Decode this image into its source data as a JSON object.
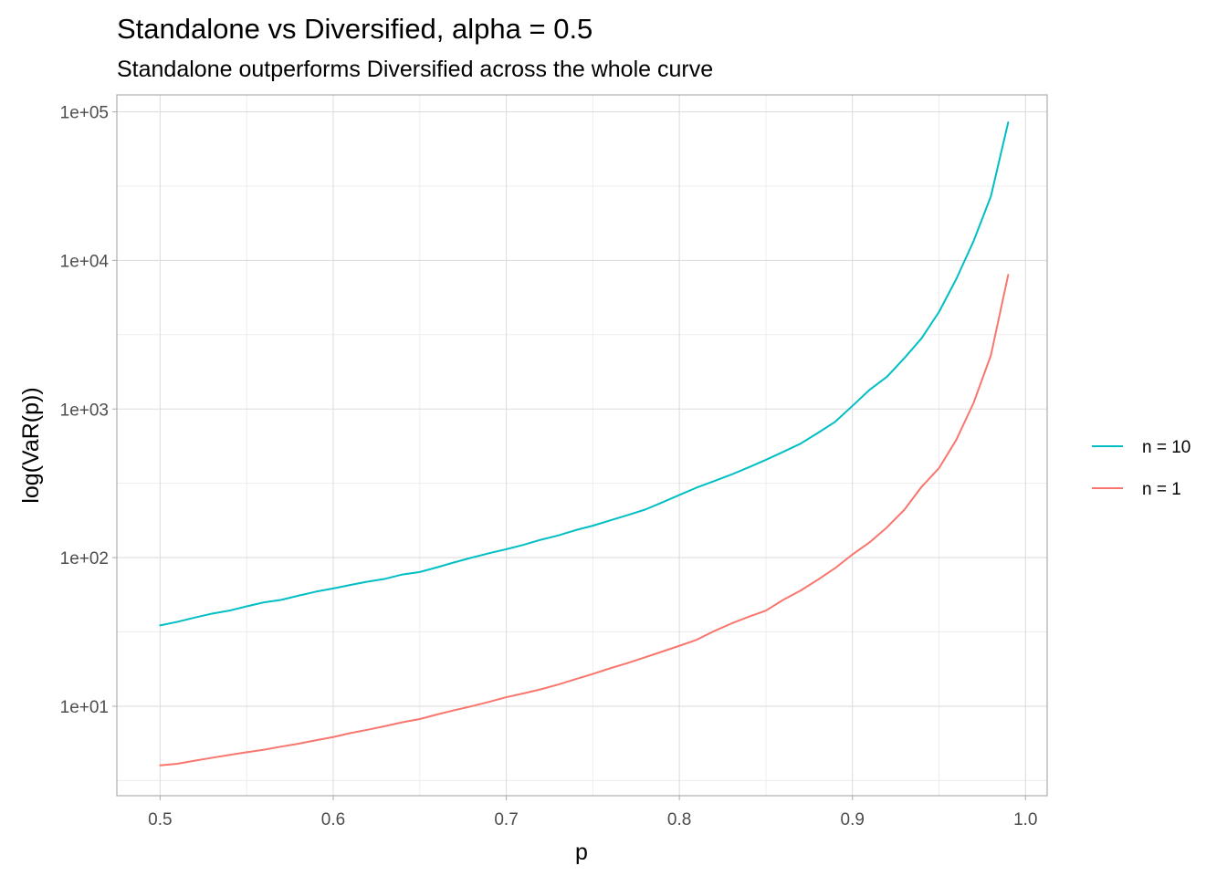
{
  "chart_data": {
    "type": "line",
    "title": "Standalone vs Diversified, alpha = 0.5",
    "subtitle": "Standalone outperforms Diversified across the whole curve",
    "xlabel": "p",
    "ylabel": "log(VaR(p))",
    "xlim": [
      0.475,
      1.0125
    ],
    "ylim": [
      2.5,
      130000
    ],
    "y_scale": "log10",
    "x_ticks": [
      0.5,
      0.6,
      0.7,
      0.8,
      0.9,
      1.0
    ],
    "x_tick_labels": [
      "0.5",
      "0.6",
      "0.7",
      "0.8",
      "0.9",
      "1.0"
    ],
    "y_ticks": [
      10,
      100,
      1000,
      10000,
      100000
    ],
    "y_tick_labels": [
      "1e+01",
      "1e+02",
      "1e+03",
      "1e+04",
      "1e+05"
    ],
    "grid": true,
    "legend_position": "right",
    "series": [
      {
        "name": "n = 10",
        "color": "#00BFC4",
        "x": [
          0.5,
          0.51,
          0.52,
          0.53,
          0.54,
          0.55,
          0.56,
          0.57,
          0.58,
          0.59,
          0.6,
          0.61,
          0.62,
          0.63,
          0.64,
          0.65,
          0.66,
          0.67,
          0.68,
          0.69,
          0.7,
          0.71,
          0.72,
          0.73,
          0.74,
          0.75,
          0.76,
          0.77,
          0.78,
          0.79,
          0.8,
          0.81,
          0.82,
          0.83,
          0.84,
          0.85,
          0.86,
          0.87,
          0.88,
          0.89,
          0.9,
          0.91,
          0.92,
          0.93,
          0.94,
          0.95,
          0.96,
          0.97,
          0.98,
          0.99
        ],
        "y": [
          35,
          37,
          39.5,
          42,
          44,
          47,
          50,
          52,
          55.5,
          59,
          62,
          65.5,
          69,
          72,
          77,
          80,
          86,
          93,
          100,
          107,
          114,
          122,
          132,
          141,
          153,
          164,
          178,
          193,
          210,
          235,
          264,
          296,
          327,
          362,
          405,
          455,
          515,
          585,
          690,
          820,
          1050,
          1350,
          1650,
          2200,
          3000,
          4500,
          7500,
          13500,
          27000,
          85000
        ]
      },
      {
        "name": "n = 1",
        "color": "#F8766D",
        "x": [
          0.5,
          0.51,
          0.52,
          0.53,
          0.54,
          0.55,
          0.56,
          0.57,
          0.58,
          0.59,
          0.6,
          0.61,
          0.62,
          0.63,
          0.64,
          0.65,
          0.66,
          0.67,
          0.68,
          0.69,
          0.7,
          0.71,
          0.72,
          0.73,
          0.74,
          0.75,
          0.76,
          0.77,
          0.78,
          0.79,
          0.8,
          0.81,
          0.82,
          0.83,
          0.84,
          0.85,
          0.86,
          0.87,
          0.88,
          0.89,
          0.9,
          0.91,
          0.92,
          0.93,
          0.94,
          0.95,
          0.96,
          0.97,
          0.98,
          0.99
        ],
        "y": [
          4.0,
          4.1,
          4.3,
          4.5,
          4.7,
          4.9,
          5.1,
          5.35,
          5.6,
          5.9,
          6.2,
          6.6,
          6.95,
          7.35,
          7.8,
          8.2,
          8.8,
          9.4,
          10.0,
          10.7,
          11.5,
          12.2,
          13.0,
          14.0,
          15.2,
          16.5,
          18.0,
          19.5,
          21.3,
          23.3,
          25.5,
          28.0,
          32.0,
          36.0,
          40.0,
          44.0,
          52.0,
          60.0,
          71.0,
          85.0,
          105.0,
          127.0,
          160.0,
          210.0,
          300.0,
          400.0,
          620.0,
          1100.0,
          2300.0,
          8000.0
        ]
      }
    ]
  }
}
